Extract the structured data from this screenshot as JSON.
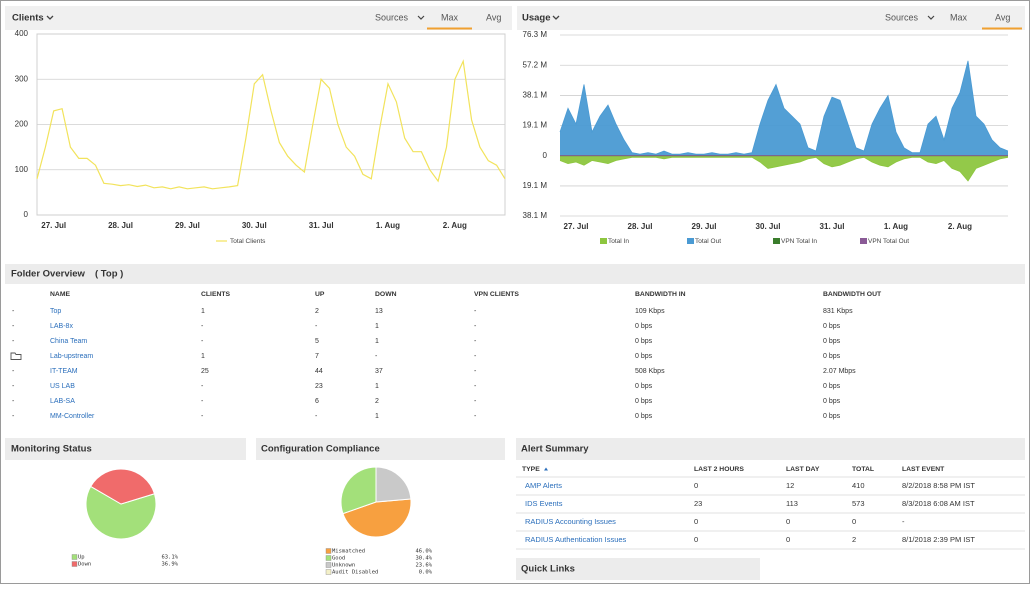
{
  "chart_data": [
    {
      "type": "line",
      "title": "Clients",
      "categories": [
        null,
        null,
        "27. Jul",
        null,
        null,
        null,
        null,
        null,
        null,
        null,
        "28. Jul",
        null,
        null,
        null,
        null,
        null,
        null,
        null,
        "29. Jul",
        null,
        null,
        null,
        null,
        null,
        null,
        null,
        "30. Jul",
        null,
        null,
        null,
        null,
        null,
        null,
        null,
        "31. Jul",
        null,
        null,
        null,
        null,
        null,
        null,
        null,
        "1. Aug",
        null,
        null,
        null,
        null,
        null,
        null,
        null,
        "2. Aug",
        null,
        null,
        null,
        null,
        null,
        null
      ],
      "series": [
        {
          "name": "Total Clients",
          "color": "#f2e35c",
          "values": [
            80,
            150,
            230,
            235,
            150,
            125,
            125,
            110,
            70,
            68,
            65,
            67,
            63,
            66,
            60,
            62,
            58,
            62,
            58,
            60,
            62,
            58,
            60,
            62,
            65,
            170,
            290,
            310,
            230,
            160,
            130,
            110,
            95,
            200,
            300,
            280,
            200,
            150,
            130,
            90,
            80,
            190,
            290,
            250,
            170,
            140,
            140,
            100,
            75,
            150,
            300,
            340,
            210,
            150,
            120,
            110,
            80
          ]
        }
      ],
      "ylim": [
        0,
        400
      ],
      "yticks": [
        0,
        100,
        200,
        300,
        400
      ],
      "grid": true
    },
    {
      "type": "area",
      "title": "Usage",
      "categories": [
        null,
        null,
        "27. Jul",
        null,
        null,
        null,
        null,
        null,
        null,
        null,
        "28. Jul",
        null,
        null,
        null,
        null,
        null,
        null,
        null,
        "29. Jul",
        null,
        null,
        null,
        null,
        null,
        null,
        null,
        "30. Jul",
        null,
        null,
        null,
        null,
        null,
        null,
        null,
        "31. Jul",
        null,
        null,
        null,
        null,
        null,
        null,
        null,
        "1. Aug",
        null,
        null,
        null,
        null,
        null,
        null,
        null,
        "2. Aug",
        null,
        null,
        null,
        null,
        null,
        null
      ],
      "series": [
        {
          "name": "Total In",
          "color": "#8dc63f",
          "values": [
            -3,
            -5,
            -4,
            -6,
            -3,
            -4,
            -5,
            -3,
            -2,
            -1,
            -1,
            -1,
            -1,
            -2,
            -1,
            -1,
            -1,
            -1,
            -1,
            -1,
            -1,
            -1,
            -1,
            -1,
            -1,
            -4,
            -8,
            -7,
            -6,
            -5,
            -4,
            -2,
            -1,
            -5,
            -7,
            -6,
            -4,
            -2,
            -1,
            -4,
            -6,
            -7,
            -4,
            -2,
            -1,
            -1,
            -4,
            -5,
            -3,
            -8,
            -10,
            -16,
            -8,
            -6,
            -4,
            -2,
            -1
          ]
        },
        {
          "name": "Total Out",
          "color": "#4a9ad3",
          "values": [
            15,
            30,
            20,
            45,
            15,
            25,
            32,
            20,
            10,
            2,
            1,
            2,
            1,
            3,
            1,
            1,
            2,
            1,
            1,
            2,
            1,
            1,
            2,
            1,
            2,
            20,
            35,
            45,
            30,
            25,
            20,
            5,
            3,
            25,
            37,
            35,
            20,
            5,
            3,
            20,
            30,
            38,
            15,
            5,
            2,
            2,
            20,
            25,
            10,
            30,
            40,
            60,
            25,
            20,
            10,
            5,
            3
          ]
        },
        {
          "name": "VPN Total In",
          "color": "#3a7d2c",
          "values": [
            0,
            0,
            0,
            0,
            0,
            0,
            0,
            0,
            0,
            0,
            0,
            0,
            0,
            0,
            0,
            0,
            0,
            0,
            0,
            0,
            0,
            0,
            0,
            0,
            0,
            0,
            0,
            0,
            0,
            0,
            0,
            0,
            0,
            0,
            0,
            0,
            0,
            0,
            0,
            0,
            0,
            0,
            0,
            0,
            0,
            0,
            0,
            0,
            0,
            0,
            0,
            0,
            0,
            0,
            0,
            0,
            0
          ]
        },
        {
          "name": "VPN Total Out",
          "color": "#8a5a96",
          "values": [
            0,
            0,
            0,
            0,
            0,
            0,
            0,
            0,
            0,
            0,
            0,
            0,
            0,
            0,
            0,
            0,
            0,
            0,
            0,
            0,
            0,
            0,
            0,
            0,
            0,
            0,
            0,
            0,
            0,
            0,
            0,
            0,
            0,
            0,
            0,
            0,
            0,
            0,
            0,
            0,
            0,
            0,
            0,
            0,
            0,
            0,
            0,
            0,
            0,
            0,
            0,
            0,
            0,
            0,
            0,
            0,
            0
          ]
        }
      ],
      "ylim": [
        -38.1,
        76.3
      ],
      "yticks": [
        {
          "value": 76.3,
          "label": "76.3 M"
        },
        {
          "value": 57.2,
          "label": "57.2 M"
        },
        {
          "value": 38.1,
          "label": "38.1 M"
        },
        {
          "value": 19.1,
          "label": "19.1 M"
        },
        0,
        {
          "value": -19.1,
          "label": "19.1 M"
        },
        {
          "value": -38.1,
          "label": "38.1 M"
        }
      ],
      "grid": true
    },
    {
      "type": "pie",
      "title": "Monitoring Status",
      "categories": [
        "Up",
        "Down"
      ],
      "values": [
        63.1,
        36.9
      ],
      "value_labels": [
        "63.1%",
        "36.9%"
      ],
      "colors": [
        "#a3e07a",
        "#f06b6b"
      ]
    },
    {
      "type": "pie",
      "title": "Configuration Compliance",
      "categories": [
        "Mismatched",
        "Good",
        "Unknown",
        "Audit Disabled"
      ],
      "values": [
        46.0,
        30.4,
        23.6,
        0.0
      ],
      "value_labels": [
        "46.0%",
        "30.4%",
        "23.6%",
        "0.0%"
      ],
      "colors": [
        "#f7a040",
        "#a3e07a",
        "#c9c9c9",
        "#f3f0c8"
      ]
    }
  ],
  "chart_tabs": [
    {
      "items": [
        "Sources",
        "Max",
        "Avg"
      ],
      "active": 1
    },
    {
      "items": [
        "Sources",
        "Max",
        "Avg"
      ],
      "active": 2
    }
  ],
  "folder_overview": {
    "title": "Folder Overview",
    "scope": "( Top )",
    "columns": [
      "NAME",
      "CLIENTS",
      "UP",
      "DOWN",
      "VPN CLIENTS",
      "BANDWIDTH IN",
      "BANDWIDTH OUT"
    ],
    "rows": [
      {
        "prefix": "-",
        "cells": [
          "Top",
          "1",
          "2",
          "13",
          "-",
          "109 Kbps",
          "831 Kbps"
        ]
      },
      {
        "prefix": "-",
        "cells": [
          "LAB-8x",
          "-",
          "-",
          "1",
          "-",
          "0 bps",
          "0 bps"
        ]
      },
      {
        "prefix": "-",
        "cells": [
          "China Team",
          "-",
          "5",
          "1",
          "-",
          "0 bps",
          "0 bps"
        ]
      },
      {
        "cells": [
          "Lab-upstream",
          "1",
          "7",
          "-",
          "-",
          "0 bps",
          "0 bps"
        ]
      },
      {
        "prefix": "-",
        "cells": [
          "IT-TEAM",
          "25",
          "44",
          "37",
          "-",
          "508 Kbps",
          "2.07 Mbps"
        ]
      },
      {
        "prefix": "-",
        "cells": [
          "US LAB",
          "-",
          "23",
          "1",
          "-",
          "0 bps",
          "0 bps"
        ]
      },
      {
        "prefix": "-",
        "cells": [
          "LAB-SA",
          "-",
          "6",
          "2",
          "-",
          "0 bps",
          "0 bps"
        ]
      },
      {
        "prefix": "-",
        "cells": [
          "MM-Controller",
          "-",
          "-",
          "1",
          "-",
          "0 bps",
          "0 bps"
        ]
      }
    ]
  },
  "alert_summary": {
    "title": "Alert Summary",
    "columns": [
      "TYPE",
      "LAST 2 HOURS",
      "LAST DAY",
      "TOTAL",
      "LAST EVENT"
    ],
    "rows": [
      [
        "AMP Alerts",
        "0",
        "12",
        "410",
        "8/2/2018 8:58 PM IST"
      ],
      [
        "IDS Events",
        "23",
        "113",
        "573",
        "8/3/2018 6:08 AM IST"
      ],
      [
        "RADIUS Accounting Issues",
        "0",
        "0",
        "0",
        "-"
      ],
      [
        "RADIUS Authentication Issues",
        "0",
        "0",
        "2",
        "8/1/2018 2:39 PM IST"
      ]
    ]
  },
  "quick_links": {
    "title": "Quick Links"
  }
}
